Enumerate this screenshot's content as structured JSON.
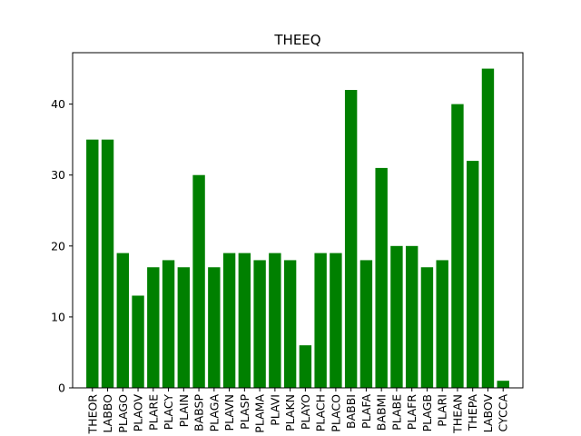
{
  "chart_data": {
    "type": "bar",
    "title": "THEEQ",
    "xlabel": "",
    "ylabel": "",
    "ylim": [
      0,
      47.25
    ],
    "yticks": [
      0,
      10,
      20,
      30,
      40
    ],
    "grid": false,
    "bar_color": "#008000",
    "categories": [
      "THEOR",
      "LABBO",
      "PLAGO",
      "PLAOV",
      "PLARE",
      "PLACY",
      "PLAIN",
      "BABSP",
      "PLAGA",
      "PLAVN",
      "PLASP",
      "PLAMA",
      "PLAVI",
      "PLAKN",
      "PLAYO",
      "PLACH",
      "PLACO",
      "BABBI",
      "PLAFA",
      "BABMI",
      "PLABE",
      "PLAFR",
      "PLAGB",
      "PLARI",
      "THEAN",
      "THEPA",
      "LABOV",
      "CYCCA"
    ],
    "values": [
      35,
      35,
      19,
      13,
      17,
      18,
      17,
      30,
      17,
      19,
      19,
      18,
      19,
      18,
      6,
      19,
      19,
      42,
      18,
      31,
      20,
      20,
      17,
      18,
      40,
      32,
      45,
      1
    ]
  }
}
